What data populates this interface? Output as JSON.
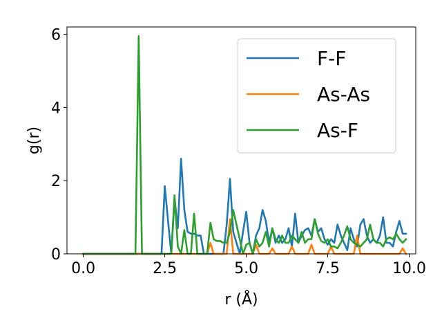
{
  "chart_data": {
    "type": "line",
    "xlabel": "r (Å)",
    "ylabel": "g(r)",
    "xlim": [
      -0.5,
      10.2
    ],
    "ylim": [
      0,
      6.2
    ],
    "xticks": [
      0.0,
      2.5,
      5.0,
      7.5,
      10.0
    ],
    "xtick_labels": [
      "0.0",
      "2.5",
      "5.0",
      "7.5",
      "10.0"
    ],
    "yticks": [
      0,
      2,
      4,
      6
    ],
    "ytick_labels": [
      "0",
      "2",
      "4",
      "6"
    ],
    "grid": false,
    "legend_position": "top-right",
    "series": [
      {
        "name": "F-F",
        "color": "#1f77b4",
        "x": [
          0.0,
          2.3,
          2.4,
          2.5,
          2.6,
          2.7,
          2.8,
          2.9,
          3.0,
          3.1,
          3.2,
          3.3,
          3.4,
          3.5,
          3.6,
          3.7,
          3.8,
          3.9,
          4.0,
          4.1,
          4.2,
          4.3,
          4.4,
          4.5,
          4.6,
          4.7,
          4.8,
          4.9,
          5.0,
          5.1,
          5.2,
          5.3,
          5.4,
          5.5,
          5.6,
          5.7,
          5.8,
          5.9,
          6.0,
          6.1,
          6.2,
          6.3,
          6.4,
          6.5,
          6.6,
          6.7,
          6.8,
          6.9,
          7.0,
          7.1,
          7.2,
          7.3,
          7.4,
          7.5,
          7.6,
          7.7,
          7.8,
          7.9,
          8.0,
          8.1,
          8.2,
          8.3,
          8.4,
          8.5,
          8.6,
          8.7,
          8.8,
          8.9,
          9.0,
          9.1,
          9.2,
          9.3,
          9.4,
          9.5,
          9.6,
          9.7,
          9.8,
          9.9
        ],
        "y": [
          0.0,
          0.0,
          0.0,
          1.85,
          0.9,
          0.0,
          1.5,
          0.7,
          2.6,
          1.2,
          0.6,
          0.55,
          0.55,
          0.5,
          0.5,
          0.0,
          0.0,
          0.0,
          0.0,
          0.0,
          0.0,
          0.0,
          0.8,
          2.05,
          0.6,
          0.3,
          0.0,
          0.6,
          1.15,
          0.3,
          0.0,
          0.5,
          0.7,
          1.2,
          0.9,
          0.3,
          0.7,
          0.3,
          0.5,
          0.3,
          0.4,
          0.7,
          0.2,
          1.1,
          0.3,
          0.5,
          0.65,
          0.7,
          0.5,
          0.95,
          0.6,
          0.7,
          0.4,
          0.25,
          0.4,
          0.3,
          0.8,
          0.5,
          0.3,
          0.1,
          0.7,
          0.4,
          0.2,
          0.8,
          0.95,
          0.5,
          0.3,
          0.4,
          0.3,
          0.5,
          1.0,
          0.3,
          0.3,
          0.2,
          0.6,
          0.9,
          0.55,
          0.55
        ]
      },
      {
        "name": "As-As",
        "color": "#ff7f0e",
        "x": [
          0.0,
          3.7,
          3.8,
          3.9,
          4.0,
          4.1,
          4.2,
          4.3,
          4.4,
          4.5,
          4.6,
          4.7,
          4.8,
          4.9,
          5.0,
          5.1,
          5.2,
          5.3,
          5.4,
          5.5,
          5.6,
          5.7,
          5.8,
          5.9,
          6.0,
          6.1,
          6.2,
          6.3,
          6.4,
          6.5,
          6.6,
          6.7,
          6.8,
          6.9,
          7.0,
          7.1,
          7.2,
          7.3,
          7.4,
          7.5,
          7.6,
          7.7,
          7.8,
          7.9,
          8.0,
          8.1,
          8.2,
          8.3,
          8.4,
          8.5,
          8.6,
          8.7,
          8.8,
          8.9,
          9.0,
          9.1,
          9.2,
          9.3,
          9.4,
          9.5,
          9.6,
          9.7,
          9.8,
          9.9
        ],
        "y": [
          0.0,
          0.0,
          0.0,
          0.3,
          0.0,
          0.0,
          0.0,
          0.0,
          0.0,
          0.95,
          0.0,
          0.0,
          0.0,
          0.0,
          0.0,
          0.0,
          0.0,
          0.25,
          0.0,
          0.0,
          0.0,
          0.0,
          0.15,
          0.0,
          0.0,
          0.0,
          0.0,
          0.0,
          0.2,
          0.0,
          0.0,
          0.0,
          0.0,
          0.0,
          0.25,
          0.0,
          0.0,
          0.0,
          0.0,
          0.0,
          0.2,
          0.0,
          0.0,
          0.0,
          0.0,
          0.0,
          0.0,
          0.0,
          0.5,
          0.0,
          0.0,
          0.0,
          0.0,
          0.0,
          0.0,
          0.0,
          0.0,
          0.0,
          0.0,
          0.0,
          0.0,
          0.0,
          0.15,
          0.0
        ]
      },
      {
        "name": "As-F",
        "color": "#2ca02c",
        "x": [
          0.0,
          1.6,
          1.7,
          1.8,
          1.9,
          2.0,
          2.5,
          2.6,
          2.7,
          2.8,
          2.9,
          3.0,
          3.1,
          3.2,
          3.3,
          3.4,
          3.5,
          3.6,
          3.7,
          3.8,
          3.9,
          4.0,
          4.1,
          4.2,
          4.3,
          4.4,
          4.5,
          4.6,
          4.7,
          4.8,
          4.9,
          5.0,
          5.1,
          5.2,
          5.3,
          5.4,
          5.5,
          5.6,
          5.7,
          5.8,
          5.9,
          6.0,
          6.1,
          6.2,
          6.3,
          6.4,
          6.5,
          6.6,
          6.7,
          6.8,
          6.9,
          7.0,
          7.1,
          7.2,
          7.3,
          7.4,
          7.5,
          7.6,
          7.7,
          7.8,
          7.9,
          8.0,
          8.1,
          8.2,
          8.3,
          8.4,
          8.5,
          8.6,
          8.7,
          8.8,
          8.9,
          9.0,
          9.1,
          9.2,
          9.3,
          9.4,
          9.5,
          9.6,
          9.7,
          9.8,
          9.9
        ],
        "y": [
          0.0,
          0.0,
          5.95,
          0.0,
          0.0,
          0.0,
          0.0,
          0.0,
          0.0,
          1.6,
          0.2,
          0.0,
          0.65,
          0.0,
          0.0,
          1.1,
          0.0,
          0.0,
          0.0,
          0.0,
          0.85,
          0.4,
          0.35,
          0.35,
          0.3,
          0.3,
          0.6,
          1.2,
          0.8,
          0.4,
          0.0,
          0.25,
          0.3,
          0.0,
          0.4,
          0.2,
          0.3,
          0.6,
          0.2,
          0.7,
          0.4,
          0.3,
          0.5,
          0.3,
          0.3,
          0.5,
          0.4,
          0.3,
          0.6,
          0.3,
          0.4,
          0.4,
          0.95,
          0.55,
          0.35,
          0.3,
          0.4,
          0.2,
          0.2,
          0.15,
          0.3,
          0.5,
          0.75,
          0.4,
          0.3,
          0.25,
          0.2,
          0.3,
          0.4,
          0.8,
          0.4,
          0.3,
          0.3,
          0.2,
          0.4,
          0.45,
          0.4,
          0.55,
          0.4,
          0.3,
          0.4
        ]
      }
    ]
  }
}
